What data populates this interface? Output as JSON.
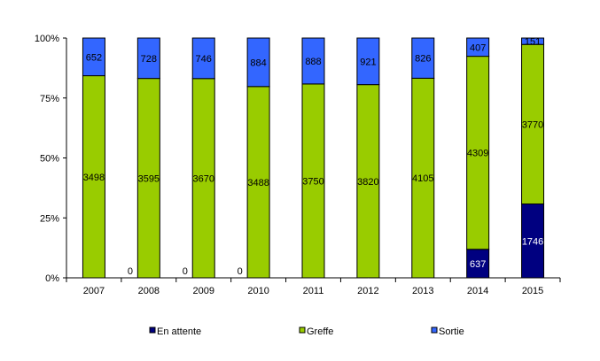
{
  "chart_data": {
    "type": "bar",
    "stacked": "percent",
    "categories": [
      "2007",
      "2008",
      "2009",
      "2010",
      "2011",
      "2012",
      "2013",
      "2014",
      "2015"
    ],
    "series": [
      {
        "name": "En attente",
        "color": "#000080",
        "values": [
          null,
          0,
          0,
          0,
          0,
          1,
          0,
          637,
          1746
        ],
        "label_color": "#ffffff"
      },
      {
        "name": "Greffe",
        "color": "#99cc00",
        "values": [
          3498,
          3595,
          3670,
          3488,
          3750,
          3820,
          4105,
          4309,
          3770
        ],
        "label_color": "#000000"
      },
      {
        "name": "Sortie",
        "color": "#3366ff",
        "values": [
          652,
          728,
          746,
          884,
          888,
          921,
          826,
          407,
          151
        ],
        "label_color": "#000000"
      }
    ],
    "annotations": [
      {
        "x": "2008",
        "text": "0"
      },
      {
        "x": "2009",
        "text": "0"
      },
      {
        "x": "2010",
        "text": "0"
      }
    ],
    "yticks": [
      "0%",
      "25%",
      "50%",
      "75%",
      "100%"
    ],
    "ylim": [
      0,
      100
    ],
    "grid": false,
    "legend": "bottom"
  }
}
